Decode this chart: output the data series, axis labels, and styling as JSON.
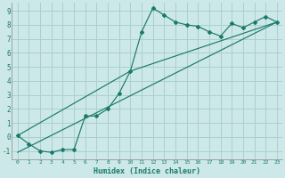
{
  "xlabel": "Humidex (Indice chaleur)",
  "bg_color": "#cde8e8",
  "grid_color": "#aacfcf",
  "line_color": "#1a7a6a",
  "xlim": [
    -0.5,
    23.5
  ],
  "ylim": [
    -1.6,
    9.6
  ],
  "xticks": [
    0,
    1,
    2,
    3,
    4,
    5,
    6,
    7,
    8,
    9,
    10,
    11,
    12,
    13,
    14,
    15,
    16,
    17,
    18,
    19,
    20,
    21,
    22,
    23
  ],
  "yticks": [
    -1,
    0,
    1,
    2,
    3,
    4,
    5,
    6,
    7,
    8,
    9
  ],
  "series1_x": [
    0,
    1,
    2,
    3,
    4,
    5,
    6,
    7,
    8,
    9,
    10,
    11,
    12,
    13,
    14,
    15,
    16,
    17,
    18,
    19,
    20,
    21,
    22,
    23
  ],
  "series1_y": [
    0.1,
    -0.5,
    -1.0,
    -1.1,
    -0.9,
    -0.9,
    1.5,
    1.5,
    2.0,
    3.1,
    4.7,
    7.5,
    9.2,
    8.7,
    8.2,
    8.0,
    7.9,
    7.5,
    7.2,
    8.1,
    7.8,
    8.2,
    8.6,
    8.2
  ],
  "line1_x": [
    0,
    23
  ],
  "line1_y": [
    -1.1,
    8.2
  ],
  "line2_x": [
    0,
    10,
    23
  ],
  "line2_y": [
    0.1,
    4.7,
    8.2
  ]
}
